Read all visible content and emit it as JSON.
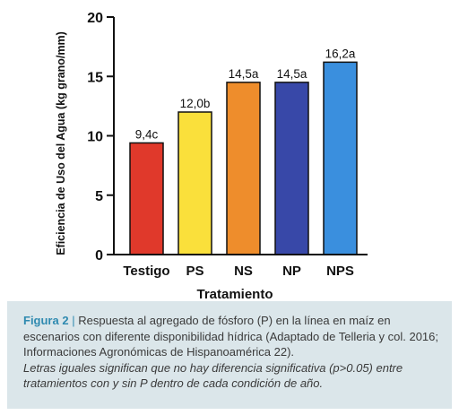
{
  "chart_data": {
    "type": "bar",
    "categories": [
      "Testigo",
      "PS",
      "NS",
      "NP",
      "NPS"
    ],
    "values": [
      9.4,
      12.0,
      14.5,
      14.5,
      16.2
    ],
    "data_labels": [
      "9,4c",
      "12,0b",
      "14,5a",
      "14,5a",
      "16,2a"
    ],
    "colors": [
      "#e0392b",
      "#fae03b",
      "#ee8d2c",
      "#3848a8",
      "#3a8fde"
    ],
    "xlabel": "Tratamiento",
    "ylabel": "Eficiencia de Uso del Agua (kg grano/mm)",
    "ylim": [
      0,
      20
    ],
    "yticks": [
      0,
      5,
      10,
      15,
      20
    ],
    "ytick_labels": [
      "0",
      "5",
      "10",
      "15",
      "20"
    ],
    "grid": false
  },
  "caption": {
    "label": "Figura 2",
    "separator": "|",
    "text": "Respuesta al agregado de fósforo (P) en la línea en maíz en escenarios con diferente disponibilidad hídrica (Adaptado de Telleria y col. 2016; Informaciones Agronómicas de Hispanoamérica 22).",
    "note": "Letras iguales significan que no hay diferencia significativa (p>0.05) entre tratamientos con y sin P dentro de cada condición de año."
  }
}
